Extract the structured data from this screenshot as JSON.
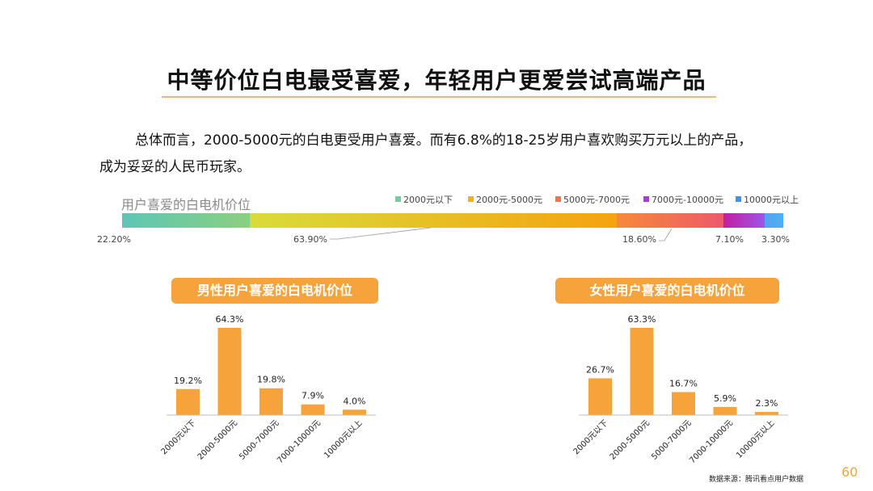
{
  "page": {
    "title": "中等价位白电最受喜爱，年轻用户更爱尝试高端产品",
    "intro_line1": "总体而言，2000-5000元的白电更受用户喜爱。而有6.8%的18-25岁用户喜欢购买万元以上的产品，",
    "intro_line2": "成为妥妥的人民币玩家。",
    "source": "数据来源：腾讯看点用户数据",
    "page_number": "60"
  },
  "chart_data": [
    {
      "type": "bar",
      "subtype": "stacked-horizontal",
      "title": "用户喜爱的白电机价位",
      "categories": [
        "2000元以下",
        "2000元-5000元",
        "5000元-7000元",
        "7000元-10000元",
        "10000元以上"
      ],
      "values": [
        22.2,
        63.9,
        18.6,
        7.1,
        3.3
      ],
      "labels": [
        "22.20%",
        "63.90%",
        "18.60%",
        "7.10%",
        "3.30%"
      ],
      "colors": [
        [
          "#5ec6b6",
          "#8ccf80"
        ],
        [
          "#d8dc3a",
          "#f5a30f"
        ],
        [
          "#f7893a",
          "#ec5a6a"
        ],
        [
          "#c21ea0",
          "#9b56e8"
        ],
        [
          "#5aa0f0",
          "#48b2f5"
        ]
      ],
      "legend_colors": [
        "#7dc8a2",
        "#f5b40a",
        "#f07355",
        "#a840c8",
        "#4a90e8"
      ],
      "legend": "top-right"
    },
    {
      "type": "bar",
      "title": "男性用户喜爱的白电机价位",
      "categories": [
        "2000元以下",
        "2000-5000元",
        "5000-7000元",
        "7000-10000元",
        "10000元以上"
      ],
      "values": [
        19.2,
        64.3,
        19.8,
        7.9,
        4.0
      ],
      "labels": [
        "19.2%",
        "64.3%",
        "19.8%",
        "7.9%",
        "4.0%"
      ],
      "color": "#f7a33b",
      "ylim": [
        0,
        64.3
      ]
    },
    {
      "type": "bar",
      "title": "女性用户喜爱的白电机价位",
      "categories": [
        "2000元以下",
        "2000-5000元",
        "5000-7000元",
        "7000-10000元",
        "10000元以上"
      ],
      "values": [
        26.7,
        63.3,
        16.7,
        5.9,
        2.3
      ],
      "labels": [
        "26.7%",
        "63.3%",
        "16.7%",
        "5.9%",
        "2.3%"
      ],
      "color": "#f7a33b",
      "ylim": [
        0,
        63.3
      ]
    }
  ]
}
